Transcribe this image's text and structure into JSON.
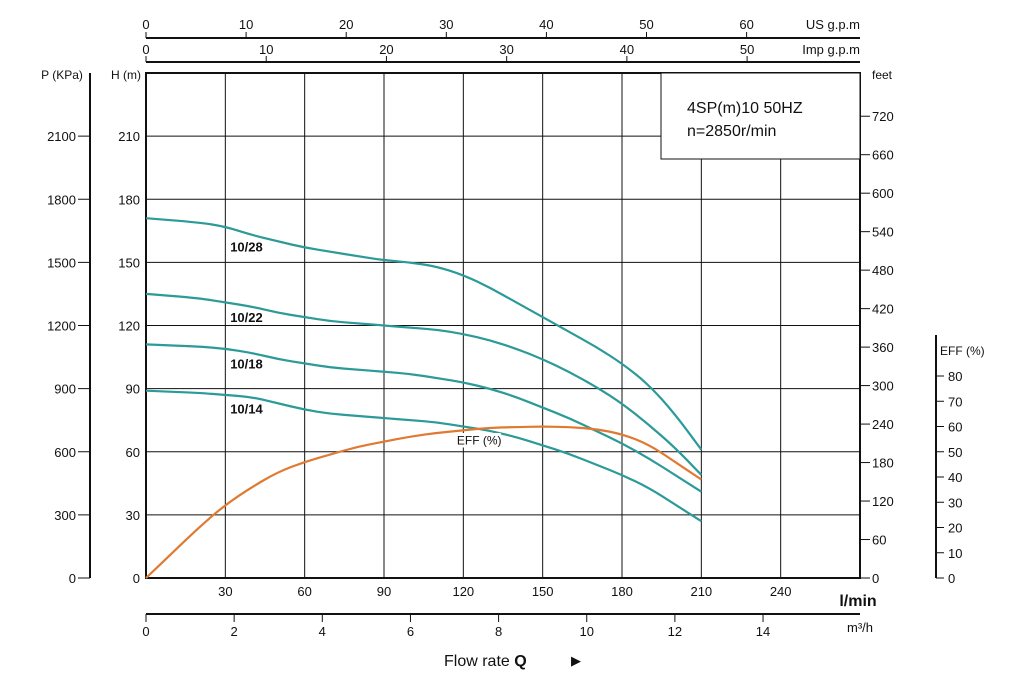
{
  "chart_data": {
    "type": "line",
    "title_lines": [
      "4SP(m)10  50HZ",
      "n=2850r/min"
    ],
    "colors": {
      "head_curves": "#2b9a98",
      "efficiency": "#e07a32",
      "grid": "#111111",
      "text": "#111111"
    },
    "axes": {
      "x_lmin": {
        "label": "l/min",
        "range": [
          0,
          270
        ],
        "ticks": [
          "0",
          "30",
          "60",
          "90",
          "120",
          "150",
          "180",
          "210",
          "240"
        ],
        "grid_step": 30
      },
      "x_m3h": {
        "label": "m³/h",
        "ticks": [
          "0",
          "2",
          "4",
          "6",
          "8",
          "10",
          "12",
          "14"
        ]
      },
      "x_us_gpm": {
        "label": "US g.p.m",
        "ticks": [
          "0",
          "10",
          "20",
          "30",
          "40",
          "50",
          "60"
        ]
      },
      "x_imp_gpm": {
        "label": "Imp g.p.m",
        "ticks": [
          "0",
          "10",
          "20",
          "30",
          "40",
          "50"
        ]
      },
      "y_head_m": {
        "label": "H (m)",
        "range": [
          0,
          240
        ],
        "ticks": [
          "0",
          "30",
          "60",
          "90",
          "120",
          "150",
          "180",
          "210"
        ]
      },
      "y_pressure_kpa": {
        "label": "P (KPa)",
        "ticks": [
          "0",
          "300",
          "600",
          "900",
          "1200",
          "1500",
          "1800",
          "2100"
        ]
      },
      "y_feet": {
        "label": "feet",
        "ticks": [
          "0",
          "60",
          "120",
          "180",
          "240",
          "300",
          "360",
          "420",
          "480",
          "540",
          "600",
          "660",
          "720"
        ]
      },
      "y_eff": {
        "label": "EFF (%)",
        "ticks": [
          "0",
          "10",
          "20",
          "30",
          "40",
          "50",
          "60",
          "70",
          "80"
        ]
      }
    },
    "flow_rate_label": "Flow rate",
    "flow_rate_symbol": "Q",
    "flow_arrow": "▶",
    "series": [
      {
        "name": "10/28",
        "x": [
          0,
          20,
          30,
          40,
          50,
          60,
          70,
          80,
          90,
          100,
          110,
          120,
          130,
          140,
          150,
          160,
          170,
          180,
          190,
          200,
          210
        ],
        "y": [
          171,
          169,
          167,
          163,
          160,
          157,
          155,
          153,
          151,
          150,
          148,
          144,
          138,
          131,
          124,
          117,
          110,
          102,
          92,
          78,
          61
        ]
      },
      {
        "name": "10/22",
        "x": [
          0,
          20,
          30,
          40,
          50,
          60,
          70,
          80,
          90,
          100,
          110,
          120,
          130,
          140,
          150,
          160,
          170,
          180,
          190,
          200,
          210
        ],
        "y": [
          135,
          133,
          131,
          129,
          126,
          124,
          122,
          121,
          120,
          119,
          118,
          116,
          113,
          109,
          104,
          98,
          91,
          83,
          73,
          62,
          49
        ]
      },
      {
        "name": "10/18",
        "x": [
          0,
          20,
          30,
          40,
          50,
          60,
          70,
          80,
          90,
          100,
          110,
          120,
          130,
          140,
          150,
          160,
          170,
          180,
          190,
          200,
          210
        ],
        "y": [
          111,
          110,
          109,
          107,
          104,
          102,
          100,
          99,
          98,
          97,
          95,
          93,
          90,
          86,
          81,
          76,
          70,
          64,
          57,
          49,
          41
        ]
      },
      {
        "name": "10/14",
        "x": [
          0,
          20,
          30,
          40,
          50,
          60,
          70,
          80,
          90,
          100,
          110,
          120,
          130,
          140,
          150,
          160,
          170,
          180,
          190,
          200,
          210
        ],
        "y": [
          89,
          88,
          87,
          86,
          83,
          80,
          78,
          77,
          76,
          75,
          74,
          72,
          70,
          67,
          63,
          59,
          54,
          49,
          43,
          35,
          27
        ]
      },
      {
        "name": "EFF (%)",
        "axis": "y_eff",
        "x": [
          0,
          10,
          20,
          30,
          40,
          50,
          60,
          70,
          80,
          90,
          100,
          110,
          120,
          130,
          140,
          150,
          160,
          170,
          180,
          190,
          200,
          210
        ],
        "y": [
          0,
          10,
          20,
          29,
          36,
          42,
          46,
          49,
          52,
          54,
          56,
          57.5,
          58.5,
          59.5,
          59.8,
          60,
          59.8,
          59,
          57,
          53,
          46,
          39
        ]
      }
    ],
    "grid": true,
    "info_box": "top-right"
  }
}
